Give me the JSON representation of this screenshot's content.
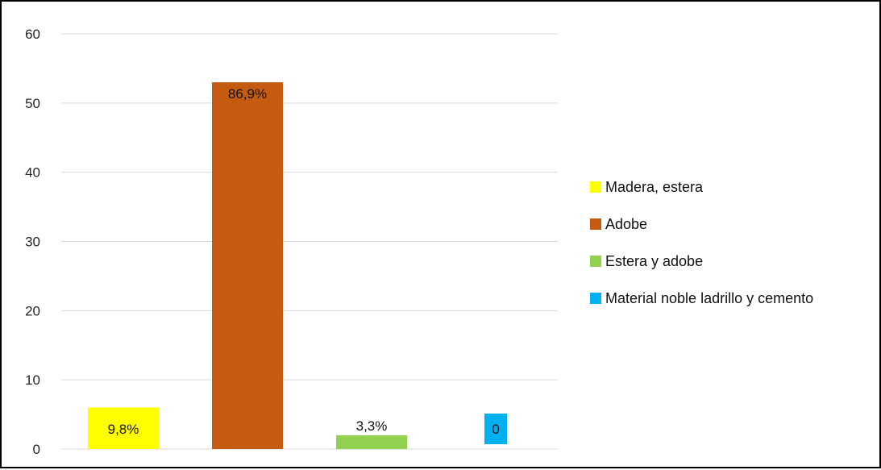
{
  "chart_data": {
    "type": "bar",
    "ylim": [
      0,
      60
    ],
    "yticks": [
      0,
      10,
      20,
      30,
      40,
      50,
      60
    ],
    "grid": true,
    "legend_position": "right",
    "series": [
      {
        "name": "Madera, estera",
        "value": 6,
        "label": "9,8%",
        "color": "#FFFF00"
      },
      {
        "name": "Adobe",
        "value": 53,
        "label": "86,9%",
        "color": "#C55A11"
      },
      {
        "name": "Estera y adobe",
        "value": 2,
        "label": "3,3%",
        "color": "#92D050"
      },
      {
        "name": "Material noble ladrillo y cemento",
        "value": 0,
        "label": "0",
        "color": "#00B0F0"
      }
    ]
  }
}
